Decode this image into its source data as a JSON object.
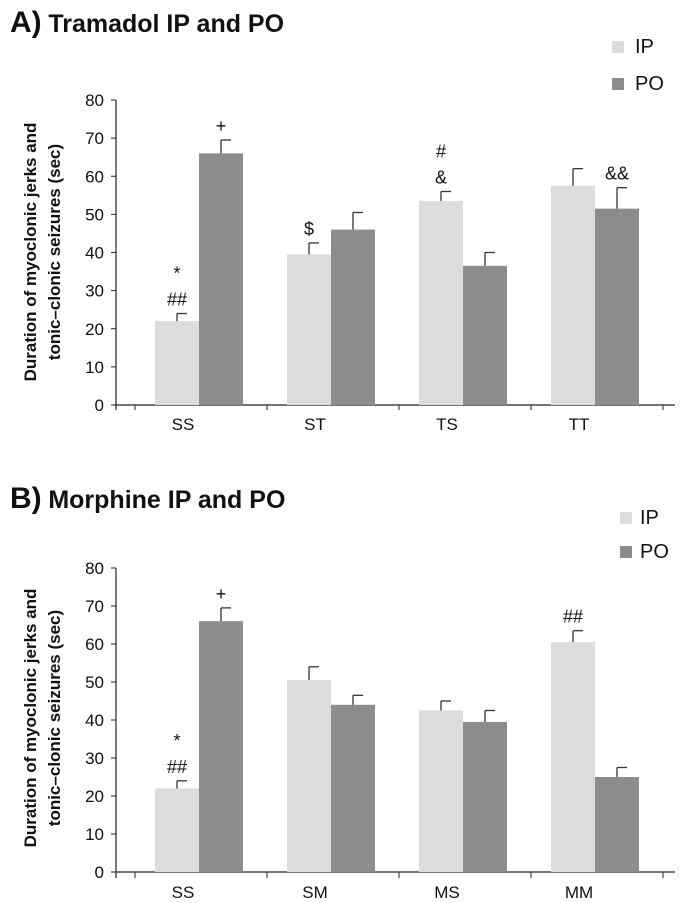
{
  "chart_data": [
    {
      "type": "bar",
      "panel_letter": "A)",
      "title": "Tramadol IP and PO",
      "ylabel": [
        "Duration of myoclonic jerks and",
        "tonic–clonic seizures (sec)"
      ],
      "xlabel": "",
      "ylim": [
        0,
        80
      ],
      "yticks": [
        0,
        10,
        20,
        30,
        40,
        50,
        60,
        70,
        80
      ],
      "categories": [
        "SS",
        "ST",
        "TS",
        "TT"
      ],
      "legend_position": "top-right",
      "series": [
        {
          "name": "IP",
          "color": "#dcdcdc",
          "values": [
            22,
            39.5,
            53.5,
            57.5
          ],
          "errors": [
            2,
            3,
            2.5,
            4.5
          ]
        },
        {
          "name": "PO",
          "color": "#8c8c8c",
          "values": [
            66,
            46,
            36.5,
            51.5
          ],
          "errors": [
            3.5,
            4.5,
            3.5,
            5.5
          ]
        }
      ],
      "annotations": [
        {
          "series": 0,
          "category": 0,
          "lines": [
            "*",
            "##"
          ]
        },
        {
          "series": 1,
          "category": 0,
          "lines": [
            "+"
          ]
        },
        {
          "series": 0,
          "category": 1,
          "lines": [
            "$"
          ]
        },
        {
          "series": 0,
          "category": 2,
          "lines": [
            "#",
            "&"
          ]
        },
        {
          "series": 1,
          "category": 3,
          "lines": [
            "&&"
          ]
        }
      ]
    },
    {
      "type": "bar",
      "panel_letter": "B)",
      "title": "Morphine IP and PO",
      "ylabel": [
        "Duration of myoclonic jerks and",
        "tonic–clonic seizures (sec)"
      ],
      "xlabel": "",
      "ylim": [
        0,
        80
      ],
      "yticks": [
        0,
        10,
        20,
        30,
        40,
        50,
        60,
        70,
        80
      ],
      "categories": [
        "SS",
        "SM",
        "MS",
        "MM"
      ],
      "legend_position": "top-right",
      "series": [
        {
          "name": "IP",
          "color": "#dcdcdc",
          "values": [
            22,
            50.5,
            42.5,
            60.5
          ],
          "errors": [
            2,
            3.5,
            2.5,
            3
          ]
        },
        {
          "name": "PO",
          "color": "#8c8c8c",
          "values": [
            66,
            44,
            39.5,
            25
          ],
          "errors": [
            3.5,
            2.5,
            3,
            2.5
          ]
        }
      ],
      "annotations": [
        {
          "series": 0,
          "category": 0,
          "lines": [
            "*",
            "##"
          ]
        },
        {
          "series": 1,
          "category": 0,
          "lines": [
            "+"
          ]
        },
        {
          "series": 0,
          "category": 3,
          "lines": [
            "##"
          ]
        }
      ]
    }
  ]
}
